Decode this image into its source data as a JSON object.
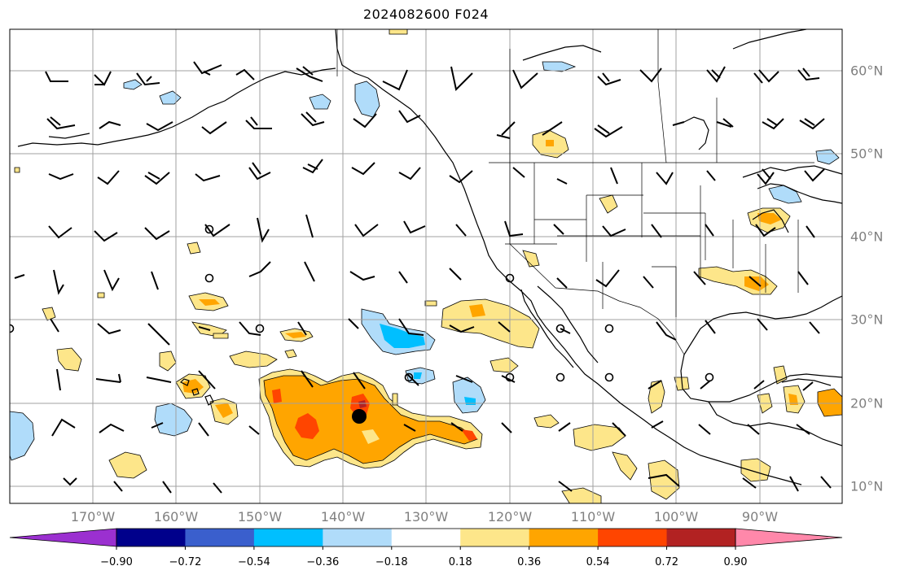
{
  "title": "2024082600 F024",
  "map": {
    "longitude_labels": [
      {
        "lon": -170,
        "text": "170°W"
      },
      {
        "lon": -160,
        "text": "160°W"
      },
      {
        "lon": -150,
        "text": "150°W"
      },
      {
        "lon": -140,
        "text": "140°W"
      },
      {
        "lon": -130,
        "text": "130°W"
      },
      {
        "lon": -120,
        "text": "120°W"
      },
      {
        "lon": -110,
        "text": "110°W"
      },
      {
        "lon": -100,
        "text": "100°W"
      },
      {
        "lon": -90,
        "text": "90°W"
      }
    ],
    "latitude_labels": [
      {
        "lat": 60,
        "text": "60°N"
      },
      {
        "lat": 50,
        "text": "50°N"
      },
      {
        "lat": 40,
        "text": "40°N"
      },
      {
        "lat": 30,
        "text": "30°N"
      },
      {
        "lat": 20,
        "text": "20°N"
      },
      {
        "lat": 10,
        "text": "10°N"
      }
    ],
    "colors": {
      "land_line": "#000000",
      "grid": "#a0a0a0",
      "label_text": "#808080"
    }
  },
  "colorbar": {
    "colors": [
      "#9b30d0",
      "#00008b",
      "#3a5fcd",
      "#00bfff",
      "#b0dcfa",
      "#ffffff",
      "#fde68a",
      "#ffa500",
      "#ff4500",
      "#b22222",
      "#ff88aa"
    ],
    "tick_labels": [
      "−0.90",
      "−0.72",
      "−0.54",
      "−0.36",
      "−0.18",
      "0.18",
      "0.36",
      "0.54",
      "0.72",
      "0.90"
    ]
  }
}
